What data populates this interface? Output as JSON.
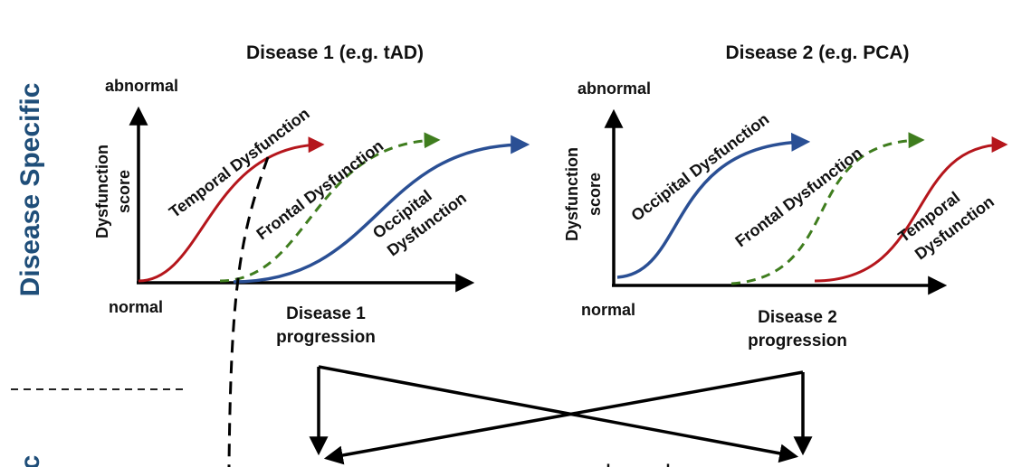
{
  "side_label": "Disease Specific",
  "side_label_partial": "c",
  "panels": [
    {
      "title": "Disease 1 (e.g. tAD)",
      "y_top": "abnormal",
      "y_bottom": "normal",
      "y_label": [
        "Dysfunction",
        "score"
      ],
      "x_label": [
        "Disease 1",
        "progression"
      ],
      "curves": [
        {
          "label": "Temporal Dysfunction",
          "color": "#b5161c",
          "style": "solid"
        },
        {
          "label": "Frontal Dysfunction",
          "color": "#3f7d1e",
          "style": "dashed"
        },
        {
          "label": [
            "Occipital",
            "Dysfunction"
          ],
          "color": "#2a4f94",
          "style": "solid"
        }
      ]
    },
    {
      "title": "Disease 2 (e.g. PCA)",
      "y_top": "abnormal",
      "y_bottom": "normal",
      "y_label": [
        "Dysfunction",
        "score"
      ],
      "x_label": [
        "Disease 2",
        "progression"
      ],
      "curves": [
        {
          "label": "Occipital Dysfunction",
          "color": "#2a4f94",
          "style": "solid"
        },
        {
          "label": "Frontal Dysfunction",
          "color": "#3f7d1e",
          "style": "dashed"
        },
        {
          "label": [
            "Temporal",
            "Dysfunction"
          ],
          "color": "#b5161c",
          "style": "solid"
        }
      ]
    }
  ],
  "bottom_partial_label": "abnormal"
}
